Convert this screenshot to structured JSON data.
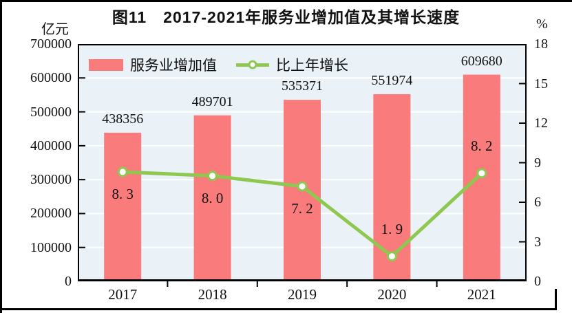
{
  "title": "图11　2017-2021年服务业增加值及其增长速度",
  "legend": {
    "bar_label": "服务业增加值",
    "line_label": "比上年增长"
  },
  "colors": {
    "bar": "#F97B7B",
    "line": "#8FC850",
    "plot_bg": "#EAF2F8",
    "grid": "#FFFFFF",
    "axis": "#000000",
    "text": "#111111",
    "marker_fill": "#FFFFFF"
  },
  "chart_data": {
    "type": "combo",
    "title": "图11　2017-2021年服务业增加值及其增长速度",
    "categories": [
      "2017",
      "2018",
      "2019",
      "2020",
      "2021"
    ],
    "series": [
      {
        "name": "服务业增加值",
        "type": "bar",
        "axis": "left",
        "values": [
          438356,
          489701,
          535371,
          551974,
          609680
        ],
        "labels": [
          "438356",
          "489701",
          "535371",
          "551974",
          "609680"
        ]
      },
      {
        "name": "比上年增长",
        "type": "line",
        "axis": "right",
        "values": [
          8.3,
          8.0,
          7.2,
          1.9,
          8.2
        ],
        "labels": [
          "8. 3",
          "8. 0",
          "7. 2",
          "1. 9",
          "8. 2"
        ],
        "label_side": [
          "below",
          "below",
          "below",
          "above",
          "above"
        ]
      }
    ],
    "axes": {
      "left": {
        "unit": "亿元",
        "min": 0,
        "max": 700000,
        "step": 100000,
        "tick_labels": [
          "0",
          "100000",
          "200000",
          "300000",
          "400000",
          "500000",
          "600000",
          "700000"
        ]
      },
      "right": {
        "unit": "%",
        "min": 0,
        "max": 18,
        "step": 3,
        "tick_labels": [
          "0",
          "3",
          "6",
          "9",
          "12",
          "15",
          "18"
        ]
      }
    },
    "grid": "horizontal-white-per-left-step",
    "legend_position": "top-left-inside"
  }
}
